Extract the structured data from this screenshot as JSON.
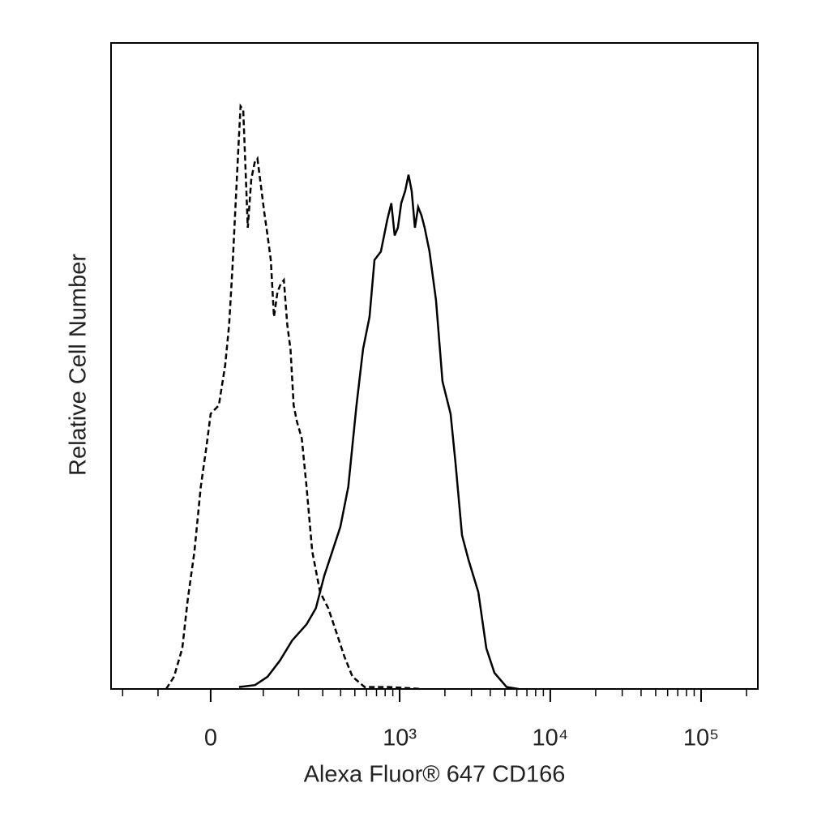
{
  "chart_data": {
    "type": "line",
    "x_label": "Alexa Fluor® 647 CD166",
    "y_label": "Relative Cell Number",
    "xscale": "asinh",
    "xlim": [
      -244,
      237900
    ],
    "xticks": [
      0,
      {
        "value": 1000,
        "label": "10³"
      },
      {
        "value": 10000,
        "label": "10⁴"
      },
      {
        "value": 100000,
        "label": "10⁵"
      }
    ],
    "xminorticks": [
      -200,
      -100,
      100,
      200,
      300,
      400,
      500,
      600,
      700,
      800,
      900,
      2000,
      3000,
      4000,
      5000,
      6000,
      7000,
      8000,
      9000,
      20000,
      30000,
      40000,
      50000,
      60000,
      70000,
      80000,
      90000,
      200000
    ],
    "ylim": [
      0,
      100
    ],
    "series": [
      {
        "color": "#000000",
        "line_style": "dashed",
        "x": [
          -82,
          -66,
          -50,
          -40,
          -28,
          -17,
          -7,
          0,
          14,
          25,
          32,
          38,
          43,
          49,
          53,
          58,
          62,
          67,
          74,
          81,
          87,
          95,
          102,
          110,
          118,
          126,
          135,
          144,
          153,
          163,
          173,
          183,
          194,
          211,
          229,
          252,
          287,
          328,
          373,
          424,
          482,
          582,
          849,
          1397
        ],
        "values": [
          0,
          1.9,
          6.3,
          13.8,
          21.3,
          31.3,
          37.6,
          42.6,
          43.9,
          50.1,
          56.4,
          65.2,
          73.9,
          84.0,
          90.2,
          89.6,
          81.5,
          71.4,
          78.9,
          81.5,
          82.1,
          77.7,
          73.9,
          70.2,
          66.4,
          57.6,
          61.4,
          62.7,
          63.3,
          56.4,
          52.6,
          43.9,
          41.4,
          38.8,
          31.3,
          21.3,
          15.0,
          12.5,
          8.8,
          5.0,
          1.9,
          0.3,
          0.3,
          0
        ]
      },
      {
        "color": "#000000",
        "line_style": "solid",
        "x": [
          50,
          82,
          110,
          142,
          178,
          229,
          268,
          307,
          350,
          398,
          451,
          513,
          568,
          628,
          678,
          749,
          828,
          880,
          926,
          973,
          1024,
          1089,
          1145,
          1203,
          1264,
          1328,
          1397,
          1467,
          1581,
          1746,
          1928,
          2180,
          2350,
          2598,
          2870,
          3330,
          3765,
          4264,
          5130,
          6170
        ],
        "values": [
          0.3,
          0.6,
          1.9,
          4.4,
          7.5,
          10.0,
          12.5,
          17.5,
          21.3,
          25.1,
          31.3,
          43.9,
          52.6,
          57.6,
          66.4,
          67.7,
          72.7,
          75.2,
          70.2,
          71.4,
          75.2,
          77.1,
          79.6,
          77.1,
          71.4,
          74.6,
          73.3,
          71.4,
          67.7,
          60.2,
          47.6,
          42.6,
          35.1,
          23.8,
          20.0,
          15.0,
          6.3,
          2.5,
          0.3,
          0
        ]
      }
    ]
  }
}
